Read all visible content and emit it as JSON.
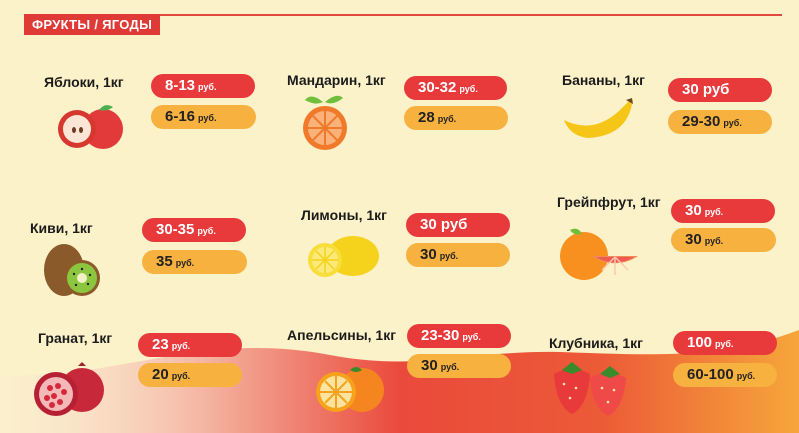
{
  "header": {
    "title": "ФРУКТЫ / ЯГОДЫ"
  },
  "unit": "руб.",
  "items": [
    {
      "name": "Яблоки, 1кг",
      "icon": "apple-icon",
      "price1": "8-13",
      "unit1": "руб.",
      "price2": "6-16",
      "unit2": "руб."
    },
    {
      "name": "Мандарин, 1кг",
      "icon": "tangerine-icon",
      "price1": "30-32",
      "unit1": "руб.",
      "price2": "28",
      "unit2": "руб."
    },
    {
      "name": "Бананы, 1кг",
      "icon": "banana-icon",
      "price1": "30 руб",
      "unit1": "",
      "price2": "29-30",
      "unit2": "руб."
    },
    {
      "name": "Киви, 1кг",
      "icon": "kiwi-icon",
      "price1": "30-35",
      "unit1": "руб.",
      "price2": "35",
      "unit2": "руб."
    },
    {
      "name": "Лимоны, 1кг",
      "icon": "lemon-icon",
      "price1": "30 руб",
      "unit1": "",
      "price2": "30",
      "unit2": "руб."
    },
    {
      "name": "Грейпфрут, 1кг",
      "icon": "grapefruit-icon",
      "price1": "30",
      "unit1": "руб.",
      "price2": "30",
      "unit2": "руб."
    },
    {
      "name": "Гранат, 1кг",
      "icon": "pomegranate-icon",
      "price1": "23",
      "unit1": "руб.",
      "price2": "20",
      "unit2": "руб."
    },
    {
      "name": "Апельсины, 1кг",
      "icon": "orange-icon",
      "price1": "23-30",
      "unit1": "руб.",
      "price2": "30",
      "unit2": "руб."
    },
    {
      "name": "Клубника, 1кг",
      "icon": "strawberry-icon",
      "price1": "100",
      "unit1": "руб.",
      "price2": "60-100",
      "unit2": "руб."
    }
  ],
  "colors": {
    "background": "#fbf2c9",
    "red": "#e8393b",
    "yellow": "#f7b13f",
    "header": "#e03a36"
  }
}
